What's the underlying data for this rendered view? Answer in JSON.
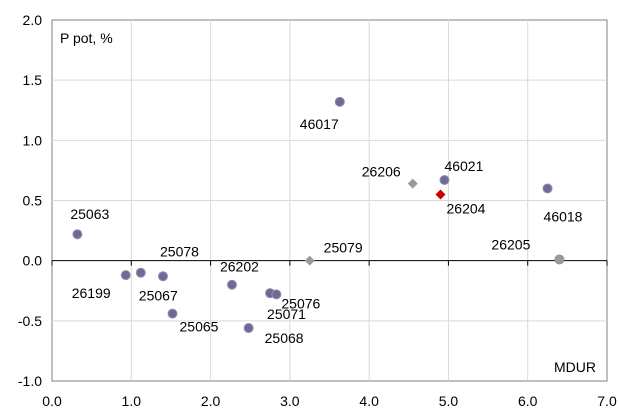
{
  "chart_data": {
    "type": "scatter",
    "ylabel": "P pot, %",
    "xlabel": "MDUR",
    "xlim": [
      0.0,
      7.0
    ],
    "ylim": [
      -1.0,
      2.0
    ],
    "x_ticks": [
      "0.0",
      "1.0",
      "2.0",
      "3.0",
      "4.0",
      "5.0",
      "6.0",
      "7.0"
    ],
    "y_ticks": [
      "-1.0",
      "-0.5",
      "0.0",
      "0.5",
      "1.0",
      "1.5",
      "2.0"
    ],
    "grid": true,
    "points": [
      {
        "label": "25063",
        "x": 0.32,
        "y": 0.22,
        "marker": "circle",
        "color": "#6b6b95"
      },
      {
        "label": "25078",
        "x": 1.4,
        "y": -0.13,
        "marker": "circle",
        "color": "#6b6b95"
      },
      {
        "label": "26199",
        "x": 0.93,
        "y": -0.12,
        "marker": "circle",
        "color": "#6b6b95"
      },
      {
        "label": "25067",
        "x": 1.12,
        "y": -0.1,
        "marker": "circle",
        "color": "#6b6b95"
      },
      {
        "label": "25065",
        "x": 1.52,
        "y": -0.44,
        "marker": "circle",
        "color": "#6b6b95"
      },
      {
        "label": "26202",
        "x": 2.27,
        "y": -0.2,
        "marker": "circle",
        "color": "#6b6b95"
      },
      {
        "label": "25068",
        "x": 2.48,
        "y": -0.56,
        "marker": "circle",
        "color": "#6b6b95"
      },
      {
        "label": "25071",
        "x": 2.75,
        "y": -0.27,
        "marker": "circle",
        "color": "#6b6b95"
      },
      {
        "label": "25076",
        "x": 2.83,
        "y": -0.28,
        "marker": "circle",
        "color": "#6b6b95"
      },
      {
        "label": "25079",
        "x": 3.25,
        "y": 0.0,
        "marker": "diamond",
        "color": "#9a9a9a"
      },
      {
        "label": "46017",
        "x": 3.63,
        "y": 1.32,
        "marker": "circle",
        "color": "#6b6b95"
      },
      {
        "label": "26206",
        "x": 4.55,
        "y": 0.64,
        "marker": "diamond",
        "color": "#9a9a9a"
      },
      {
        "label": "26204",
        "x": 4.9,
        "y": 0.55,
        "marker": "diamond",
        "color": "#cc0000"
      },
      {
        "label": "46021",
        "x": 4.95,
        "y": 0.67,
        "marker": "circle",
        "color": "#6b6b95"
      },
      {
        "label": "46018",
        "x": 6.25,
        "y": 0.6,
        "marker": "circle",
        "color": "#6b6b95"
      },
      {
        "label": "26205",
        "x": 6.4,
        "y": 0.01,
        "marker": "circle",
        "color": "#9a9a9a"
      }
    ],
    "label_colors": {
      "default": "#000000",
      "26204": "#cc0000"
    }
  }
}
